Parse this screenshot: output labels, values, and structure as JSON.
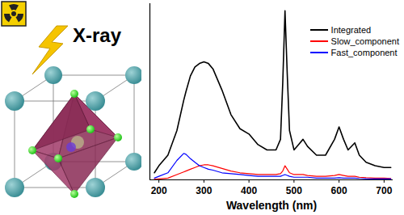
{
  "chart_data": {
    "type": "line",
    "x_label": "Wavelength (nm)",
    "annotations": [
      "X-ray"
    ],
    "x": [
      190,
      200,
      220,
      240,
      255,
      260,
      270,
      280,
      290,
      300,
      310,
      320,
      340,
      360,
      380,
      400,
      420,
      440,
      460,
      470,
      475,
      480,
      485,
      490,
      500,
      510,
      520,
      530,
      550,
      570,
      590,
      600,
      610,
      620,
      635,
      645,
      660,
      680,
      700,
      715
    ],
    "series": [
      {
        "name": "Integrated",
        "color": "#000000",
        "values": [
          4,
          8,
          14,
          28,
          45,
          50,
          59,
          64,
          66,
          67,
          66,
          63,
          51,
          37,
          29,
          26,
          20,
          17,
          17,
          23,
          55,
          96,
          60,
          28,
          17,
          20,
          23,
          19,
          14,
          14,
          23,
          30,
          23,
          17,
          21,
          14,
          10,
          8,
          7,
          7
        ]
      },
      {
        "name": "Slow_component",
        "color": "#ff0000",
        "values": [
          0.3,
          0.5,
          1,
          3,
          4.5,
          5,
          6,
          7,
          8,
          8.5,
          8.5,
          8,
          6.5,
          5,
          4,
          3.5,
          3,
          3,
          3,
          3.5,
          5,
          8,
          6,
          4,
          3,
          3,
          3,
          2.5,
          2,
          2,
          2.5,
          3,
          2.5,
          2,
          2,
          1.5,
          1.2,
          1,
          1,
          0.8
        ]
      },
      {
        "name": "Fast_component",
        "color": "#0000ff",
        "values": [
          1,
          2,
          4,
          11,
          15,
          14.5,
          12,
          10,
          8,
          7,
          6,
          5.5,
          4,
          3.5,
          3,
          2.5,
          2,
          2,
          2,
          2,
          2.5,
          3,
          2.5,
          2,
          1.5,
          1.5,
          1.5,
          1.5,
          1,
          1,
          1,
          1.2,
          1,
          1,
          1,
          0.8,
          0.6,
          0.5,
          0.5,
          0.5
        ]
      }
    ],
    "xlim": [
      180,
      720
    ],
    "xticks": [
      200,
      300,
      400,
      500,
      600,
      700
    ],
    "ylim": [
      0,
      100
    ],
    "tick_labels": "x",
    "legend": "top-right",
    "grid": false
  }
}
